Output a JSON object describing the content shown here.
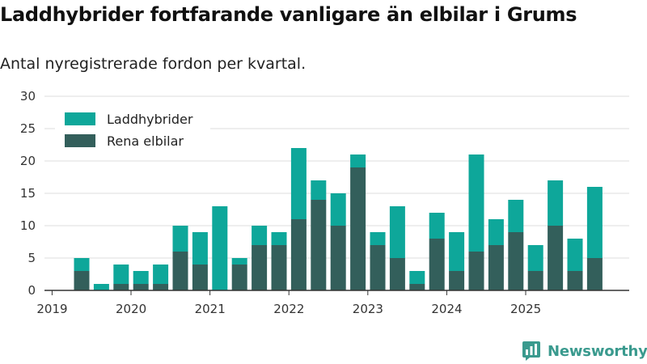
{
  "title": "Laddhybrider fortfarande vanligare än elbilar i Grums",
  "subtitle": "Antal nyregistrerade fordon per kvartal.",
  "brand": "Newsworthy",
  "colors": {
    "laddhybrider": "#0ea79a",
    "elbilar": "#335f5b",
    "grid": "#dddddd",
    "axis": "#333333"
  },
  "chart_data": {
    "type": "bar",
    "stacked": true,
    "ylim": [
      0,
      30
    ],
    "yticks": [
      0,
      5,
      10,
      15,
      20,
      25,
      30
    ],
    "xtick_labels": [
      "2019",
      "2020",
      "2021",
      "2022",
      "2023",
      "2024",
      "2025"
    ],
    "categories": [
      "2019 Q2",
      "2019 Q3",
      "2019 Q4",
      "2020 Q1",
      "2020 Q2",
      "2020 Q3",
      "2020 Q4",
      "2021 Q1",
      "2021 Q2",
      "2021 Q3",
      "2021 Q4",
      "2022 Q1",
      "2022 Q2",
      "2022 Q3",
      "2022 Q4",
      "2023 Q1",
      "2023 Q2",
      "2023 Q3",
      "2023 Q4",
      "2024 Q1",
      "2024 Q2",
      "2024 Q3",
      "2024 Q4",
      "2025 Q1",
      "2025 Q2",
      "2025 Q3",
      "2025 Q4"
    ],
    "series": [
      {
        "name": "Rena elbilar",
        "values": [
          3,
          0,
          1,
          1,
          1,
          6,
          4,
          0,
          4,
          7,
          7,
          11,
          14,
          10,
          19,
          7,
          5,
          1,
          8,
          3,
          6,
          7,
          9,
          3,
          10,
          3,
          5
        ]
      },
      {
        "name": "Laddhybrider",
        "values": [
          2,
          1,
          3,
          2,
          3,
          4,
          5,
          13,
          1,
          3,
          2,
          11,
          3,
          5,
          2,
          2,
          8,
          2,
          4,
          6,
          15,
          4,
          5,
          4,
          7,
          5,
          11
        ]
      }
    ],
    "legend": [
      "Laddhybrider",
      "Rena elbilar"
    ],
    "legend_position": "top-left"
  }
}
